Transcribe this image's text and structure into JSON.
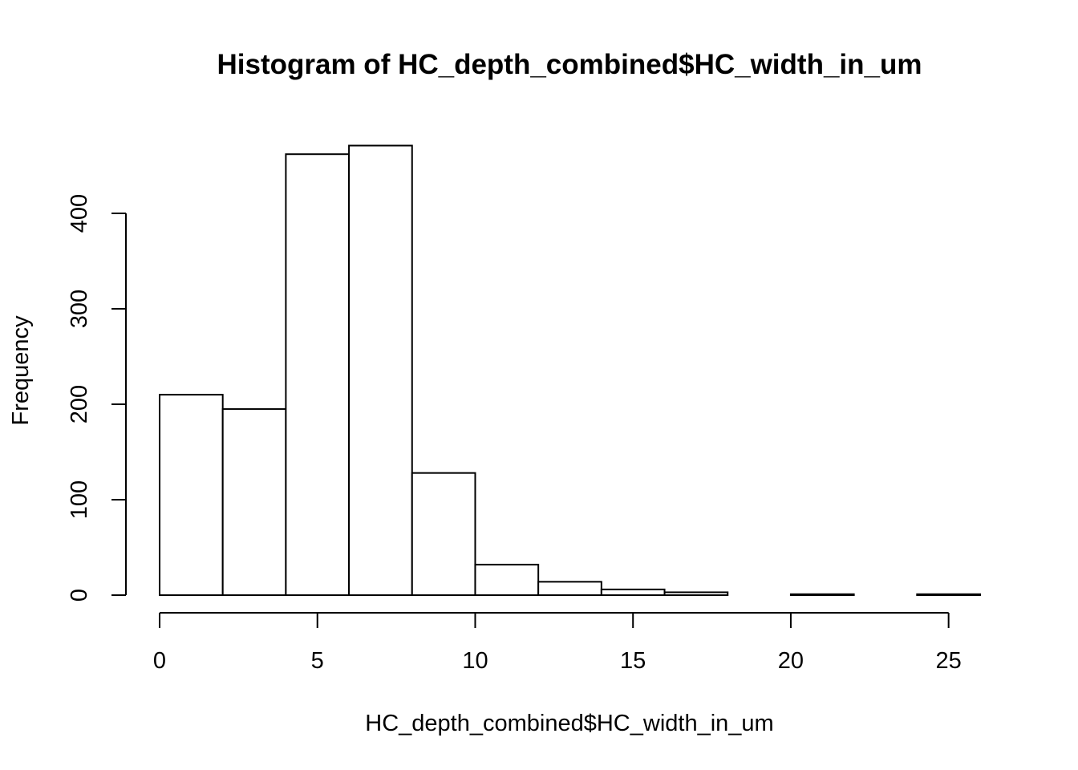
{
  "chart_data": {
    "type": "bar",
    "histogram": true,
    "title": "Histogram of HC_depth_combined$HC_width_in_um",
    "xlabel": "HC_depth_combined$HC_width_in_um",
    "ylabel": "Frequency",
    "bin_edges": [
      0,
      2,
      4,
      6,
      8,
      10,
      12,
      14,
      16,
      18,
      20,
      22,
      24,
      26
    ],
    "values": [
      210,
      195,
      462,
      471,
      128,
      32,
      14,
      6,
      3,
      0,
      1,
      0,
      1
    ],
    "x_ticks": [
      0,
      5,
      10,
      15,
      20,
      25
    ],
    "y_ticks": [
      0,
      100,
      200,
      300,
      400
    ],
    "xlim": [
      0,
      26
    ],
    "ylim": [
      0,
      480
    ],
    "grid": false,
    "colors": {
      "bar_fill": "#ffffff",
      "bar_stroke": "#000000"
    }
  }
}
